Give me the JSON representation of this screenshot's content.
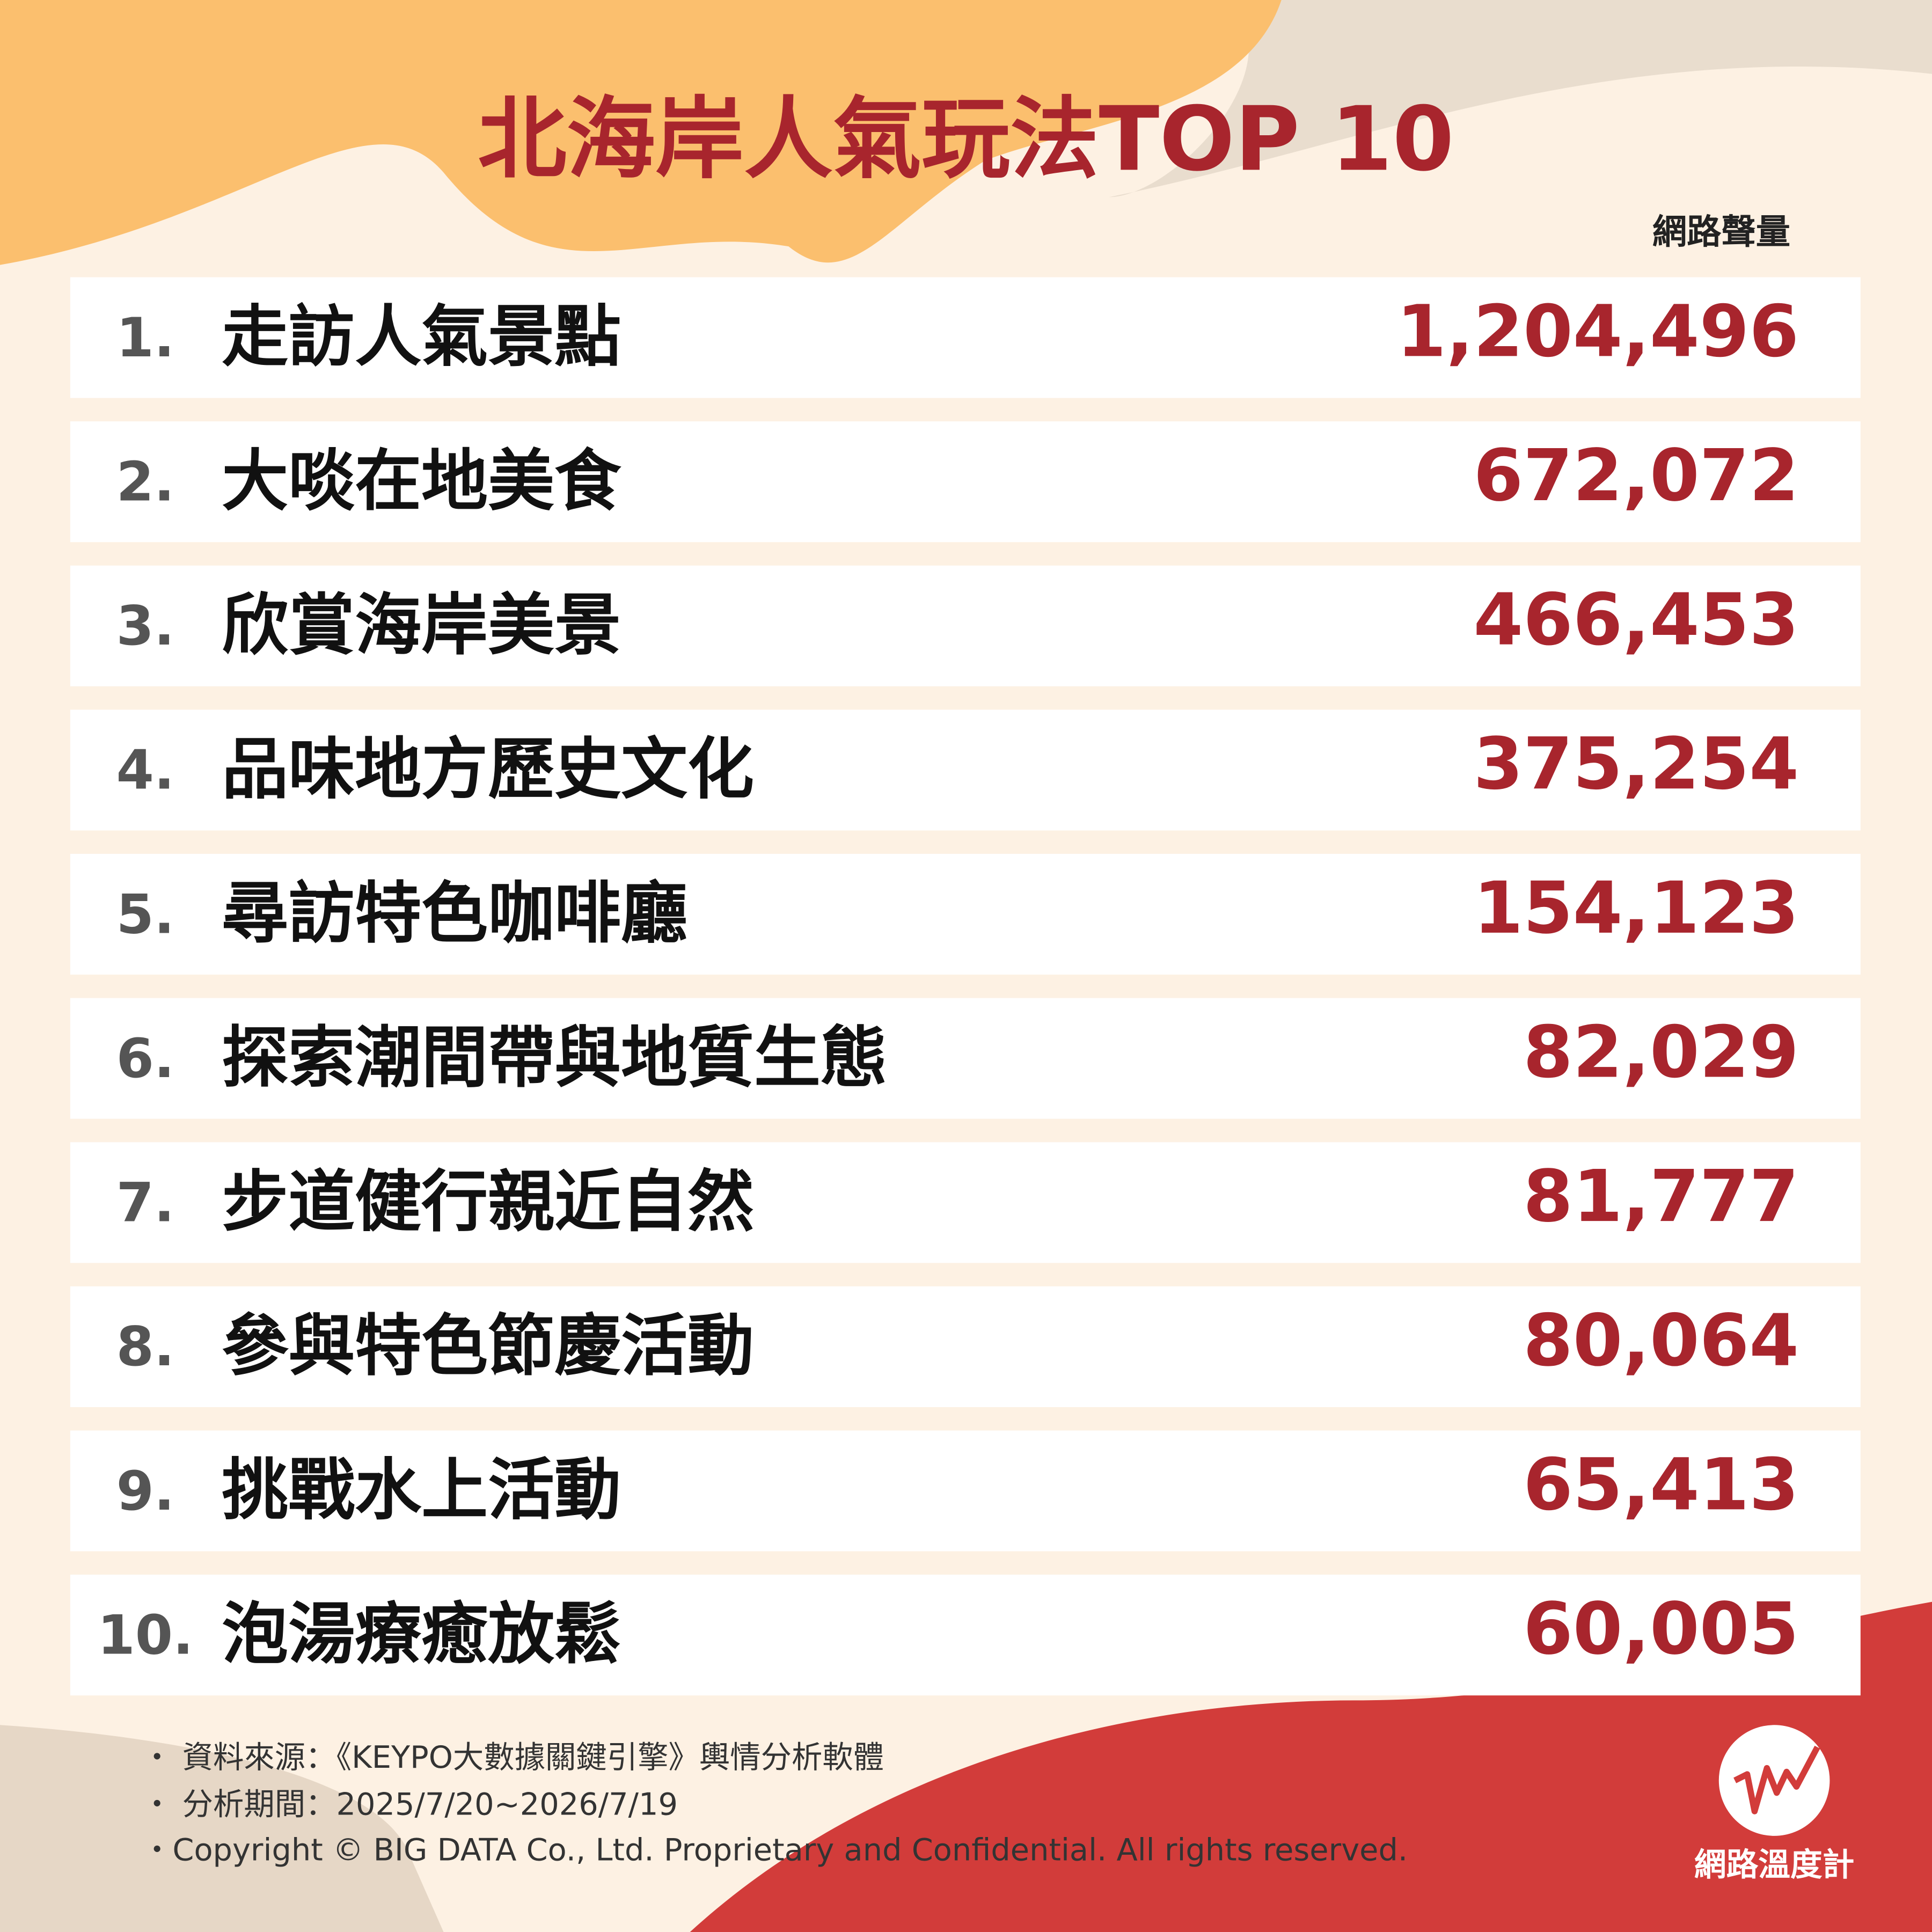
{
  "header": {
    "title": "北海岸人氣玩法TOP 10",
    "column_header": "網路聲量"
  },
  "table": {
    "rows": [
      [
        "1.",
        "走訪人氣景點",
        "1,204,496"
      ],
      [
        "2.",
        "大啖在地美食",
        "672,072"
      ],
      [
        "3.",
        "欣賞海岸美景",
        "466,453"
      ],
      [
        "4.",
        "品味地方歷史文化",
        "375,254"
      ],
      [
        "5.",
        "尋訪特色咖啡廳",
        "154,123"
      ],
      [
        "6.",
        "探索潮間帶與地質生態",
        "82,029"
      ],
      [
        "7.",
        "步道健行親近自然",
        "81,777"
      ],
      [
        "8.",
        "參與特色節慶活動",
        "80,064"
      ],
      [
        "9.",
        "挑戰水上活動",
        "65,413"
      ],
      [
        "10.",
        "泡湯療癒放鬆",
        "60,005"
      ]
    ]
  },
  "footer": {
    "notes": [
      "・ 資料來源：《KEYPO大數據關鍵引擎》輿情分析軟體",
      "・ 分析期間：2025/7/20~2026/7/19",
      "・Copyright © BIG DATA Co., Ltd. Proprietary and Confidential. All rights reserved."
    ],
    "logo": "網路溫度計"
  }
}
